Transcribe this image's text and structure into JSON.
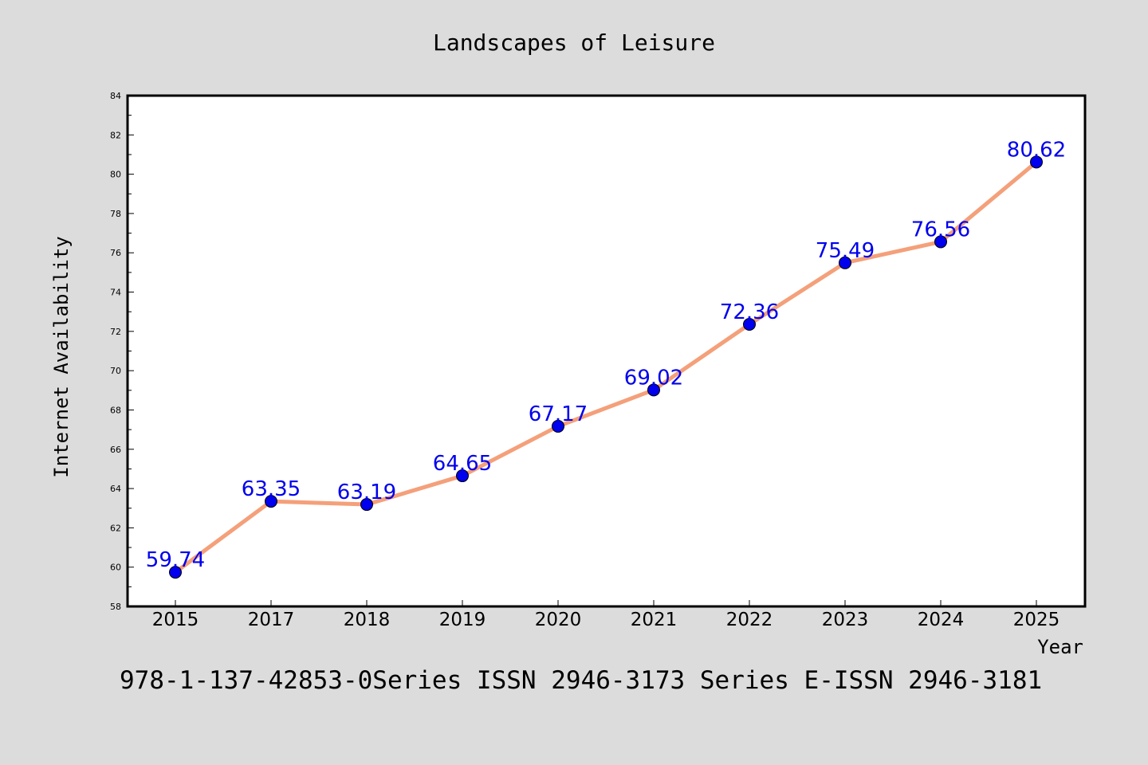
{
  "chart_data": {
    "type": "line",
    "title": "Landscapes of Leisure",
    "xlabel": "Year",
    "ylabel": "Internet Availability",
    "categories": [
      "2015",
      "2017",
      "2018",
      "2019",
      "2020",
      "2021",
      "2022",
      "2023",
      "2024",
      "2025"
    ],
    "series": [
      {
        "values": [
          59.74,
          63.35,
          63.19,
          64.65,
          67.17,
          69.02,
          72.36,
          75.49,
          76.56,
          80.62
        ],
        "labels": [
          "59.74",
          "63.35",
          "63.19",
          "64.65",
          "67.17",
          "69.02",
          "72.36",
          "75.49",
          "76.56",
          "80.62"
        ]
      }
    ],
    "ylim": [
      58,
      84
    ],
    "yticks": [
      "58",
      "60",
      "62",
      "64",
      "66",
      "68",
      "70",
      "72",
      "74",
      "76",
      "78",
      "80",
      "82",
      "84"
    ],
    "grid": false,
    "legend": "none",
    "colors": {
      "line": "#f4a07a",
      "marker": "#0000ee",
      "data_label": "#0000ee",
      "background": "#dcdcdc",
      "plot_background": "#ffffff"
    }
  },
  "footer": {
    "text": "978-1-137-42853-0Series ISSN 2946-3173 Series E-ISSN 2946-3181"
  }
}
